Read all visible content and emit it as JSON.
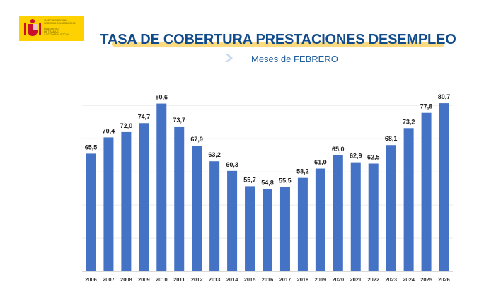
{
  "header": {
    "logo": {
      "line1": "VICEPRESIDENCIA\nSEGUNDA DEL GOBIERNO",
      "line2": "MINISTERIO\nDE TRABAJO\nY ECONOMÍA SOCIAL"
    },
    "title": "TASA DE COBERTURA PRESTACIONES DESEMPLEO",
    "subtitle": "Meses de FEBRERO"
  },
  "colors": {
    "bar": "#4472c4",
    "title": "#124b8a",
    "title_underline": "#fbd46a",
    "logo_bg": "#fdd200"
  },
  "chart_data": {
    "type": "bar",
    "title": "TASA DE COBERTURA PRESTACIONES DESEMPLEO",
    "subtitle": "Meses de FEBRERO",
    "xlabel": "",
    "ylabel": "",
    "categories": [
      "2006",
      "2007",
      "2008",
      "2009",
      "2010",
      "2011",
      "2012",
      "2013",
      "2014",
      "2015",
      "2016",
      "2017",
      "2018",
      "2019",
      "2020",
      "2021",
      "2022",
      "2023",
      "2024",
      "2025",
      "2026"
    ],
    "values": [
      65.5,
      70.4,
      72.0,
      74.7,
      80.6,
      73.7,
      67.9,
      63.2,
      60.3,
      55.7,
      54.8,
      55.5,
      58.2,
      61.0,
      65.0,
      62.9,
      62.5,
      68.1,
      73.2,
      77.8,
      80.7
    ],
    "labels": [
      "65,5",
      "70,4",
      "72,0",
      "74,7",
      "80,6",
      "73,7",
      "67,9",
      "63,2",
      "60,3",
      "55,7",
      "54,8",
      "55,5",
      "58,2",
      "61,0",
      "65,0",
      "62,9",
      "62,5",
      "68,1",
      "73,2",
      "77,8",
      "80,7"
    ],
    "ylim": [
      30,
      82
    ],
    "gridlines": [
      40,
      50,
      60,
      70,
      80
    ],
    "grid": true,
    "legend": "none"
  }
}
